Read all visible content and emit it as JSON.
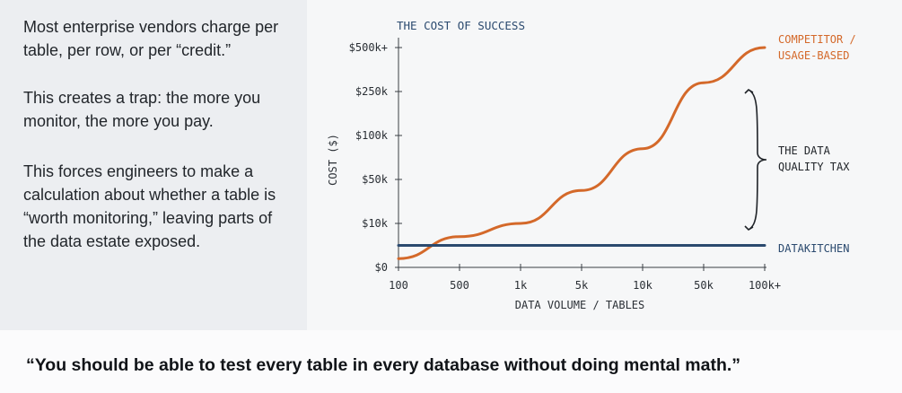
{
  "left_panel": {
    "paragraphs": [
      "Most enterprise vendors charge per table, per row, or per “credit.”",
      "This creates a trap: the more you monitor, the more you pay.",
      "This forces engineers to make a calculation about whether a table is “worth monitoring,” leaving parts of the data estate exposed."
    ]
  },
  "quote": "“You should be able to test every table in every database without doing mental math.”",
  "chart_data": {
    "type": "line",
    "title": "THE COST OF SUCCESS",
    "xlabel": "DATA VOLUME / TABLES",
    "ylabel": "COST ($)",
    "x_ticks": [
      "100",
      "500",
      "1k",
      "5k",
      "10k",
      "50k",
      "100k+"
    ],
    "y_ticks": [
      "$0",
      "$10k",
      "$50k",
      "$100k",
      "$250k",
      "$500k+"
    ],
    "series": [
      {
        "name": "COMPETITOR / USAGE-BASED",
        "color": "#d4692a",
        "x": [
          100,
          500,
          1000,
          5000,
          10000,
          50000,
          100000
        ],
        "y": [
          2000,
          7000,
          10000,
          40000,
          85000,
          300000,
          500000
        ]
      },
      {
        "name": "DATAKITCHEN",
        "color": "#2b4a6f",
        "x": [
          100,
          500,
          1000,
          5000,
          10000,
          50000,
          100000
        ],
        "y": [
          5000,
          5000,
          5000,
          5000,
          5000,
          5000,
          5000
        ]
      }
    ],
    "annotation": "THE DATA QUALITY TAX",
    "colors": {
      "axis": "#3a3f45",
      "title": "#2b4a6f",
      "text": "#2a2f35"
    }
  }
}
